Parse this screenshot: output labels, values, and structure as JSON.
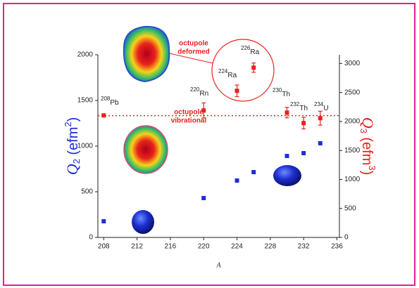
{
  "chart_data": {
    "type": "scatter",
    "xlabel": "A",
    "ylabel": [
      "Q",
      "2",
      " (efm",
      "2",
      ")"
    ],
    "y2label": [
      "Q",
      "3",
      " (efm",
      "3",
      ")"
    ],
    "xlim": [
      207.3,
      236.3
    ],
    "xticks": [
      208,
      212,
      216,
      220,
      224,
      228,
      232,
      236
    ],
    "ylim": [
      0,
      2000
    ],
    "yticks": [
      0,
      500,
      1000,
      1500,
      2000
    ],
    "y2lim": [
      0,
      3150
    ],
    "y2ticks": [
      0,
      500,
      1000,
      1500,
      2000,
      2500,
      3000
    ],
    "series": [
      {
        "color": "#1e2fd6",
        "x": [
          208,
          220,
          224,
          226,
          230,
          232,
          234
        ],
        "values": [
          177,
          431,
          623,
          715,
          892,
          923,
          1031
        ]
      },
      {
        "color": "#e8221c",
        "axis": "y2",
        "x": [
          208,
          220,
          224,
          226,
          230,
          232,
          234
        ],
        "values": [
          2105,
          2190,
          2529,
          2928,
          2153,
          1972,
          2057
        ],
        "errors": [
          0,
          130,
          100,
          80,
          90,
          100,
          120
        ]
      }
    ],
    "reference_line": {
      "axis": "y2",
      "value": 2100,
      "color": "#e8221c"
    },
    "nuclides": [
      {
        "mass": "208",
        "symbol": "Pb"
      },
      {
        "mass": "220",
        "symbol": "Rn"
      },
      {
        "mass": "224",
        "symbol": "Ra"
      },
      {
        "mass": "226",
        "symbol": "Ra"
      },
      {
        "mass": "230",
        "symbol": "Th"
      },
      {
        "mass": "232",
        "symbol": "Th"
      },
      {
        "mass": "234",
        "symbol": "U"
      }
    ],
    "annotations": [
      [
        "octupole",
        "deformed"
      ],
      [
        "octupole",
        "vibrational"
      ]
    ]
  }
}
